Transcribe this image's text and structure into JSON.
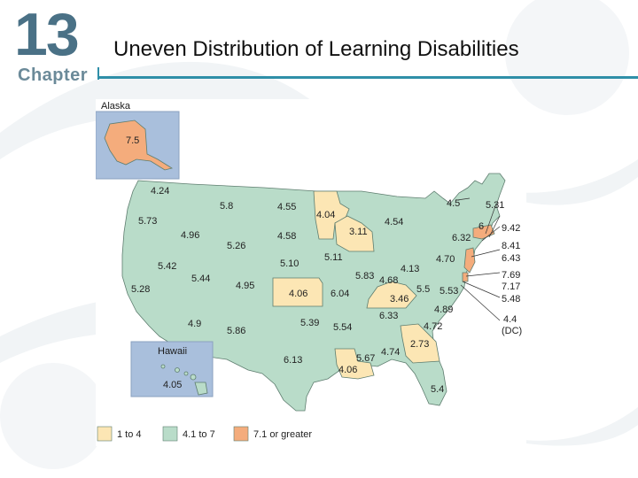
{
  "slide": {
    "chapter_number": "13",
    "chapter_word": "Chapter",
    "title": "Uneven Distribution of Learning Disabilities"
  },
  "map": {
    "colors": {
      "low": "#fce6b4",
      "mid": "#b9dcc9",
      "high": "#f4ac7c",
      "inset_bg": "#a9bfdc",
      "border": "#5e7d6f"
    },
    "alaska": {
      "title": "Alaska",
      "value": "7.5",
      "category": "high"
    },
    "hawaii": {
      "title": "Hawaii",
      "value": "4.05",
      "category": "mid"
    },
    "dc": {
      "value": "4.4",
      "name": "(DC)"
    },
    "states": [
      {
        "name": "Washington",
        "value": "4.24",
        "category": "mid"
      },
      {
        "name": "Oregon",
        "value": "5.73",
        "category": "mid"
      },
      {
        "name": "Idaho",
        "value": "4.96",
        "category": "mid"
      },
      {
        "name": "Montana",
        "value": "5.8",
        "category": "mid"
      },
      {
        "name": "Wyoming",
        "value": "5.26",
        "category": "mid"
      },
      {
        "name": "Nevada",
        "value": "5.42",
        "category": "mid"
      },
      {
        "name": "Utah",
        "value": "5.44",
        "category": "mid"
      },
      {
        "name": "California",
        "value": "5.28",
        "category": "mid"
      },
      {
        "name": "Colorado",
        "value": "4.95",
        "category": "mid"
      },
      {
        "name": "Arizona",
        "value": "4.9",
        "category": "mid"
      },
      {
        "name": "New Mexico",
        "value": "5.86",
        "category": "mid"
      },
      {
        "name": "North Dakota",
        "value": "4.55",
        "category": "mid"
      },
      {
        "name": "South Dakota",
        "value": "4.58",
        "category": "mid"
      },
      {
        "name": "Nebraska",
        "value": "5.10",
        "category": "mid"
      },
      {
        "name": "Kansas",
        "value": "4.06",
        "category": "low"
      },
      {
        "name": "Oklahoma",
        "value": "5.39",
        "category": "mid"
      },
      {
        "name": "Texas",
        "value": "6.13",
        "category": "mid"
      },
      {
        "name": "Minnesota",
        "value": "4.04",
        "category": "low"
      },
      {
        "name": "Iowa",
        "value": "5.11",
        "category": "mid"
      },
      {
        "name": "Missouri",
        "value": "6.04",
        "category": "mid"
      },
      {
        "name": "Arkansas",
        "value": "5.54",
        "category": "mid"
      },
      {
        "name": "Louisiana",
        "value": "4.06",
        "category": "low"
      },
      {
        "name": "Wisconsin",
        "value": "3.11",
        "category": "low"
      },
      {
        "name": "Illinois",
        "value": "5.83",
        "category": "mid"
      },
      {
        "name": "Michigan",
        "value": "4.54",
        "category": "mid"
      },
      {
        "name": "Indiana",
        "value": "4.68",
        "category": "mid"
      },
      {
        "name": "Ohio",
        "value": "4.13",
        "category": "mid"
      },
      {
        "name": "Kentucky",
        "value": "3.46",
        "category": "low"
      },
      {
        "name": "Tennessee",
        "value": "6.33",
        "category": "mid"
      },
      {
        "name": "Mississippi",
        "value": "5.67",
        "category": "mid"
      },
      {
        "name": "Alabama",
        "value": "4.74",
        "category": "mid"
      },
      {
        "name": "Georgia",
        "value": "2.73",
        "category": "low"
      },
      {
        "name": "Florida",
        "value": "5.4",
        "category": "mid"
      },
      {
        "name": "South Carolina",
        "value": "4.72",
        "category": "mid"
      },
      {
        "name": "North Carolina",
        "value": "4.89",
        "category": "mid"
      },
      {
        "name": "Virginia",
        "value": "5.53",
        "category": "mid"
      },
      {
        "name": "West Virginia",
        "value": "5.5",
        "category": "mid"
      },
      {
        "name": "Pennsylvania",
        "value": "4.70",
        "category": "mid"
      },
      {
        "name": "New York",
        "value": "6.32",
        "category": "mid"
      },
      {
        "name": "Vermont",
        "value": "6",
        "category": "mid"
      },
      {
        "name": "New Hampshire",
        "value": "4.5",
        "category": "mid"
      },
      {
        "name": "Maine",
        "value": "5.31",
        "category": "mid"
      },
      {
        "name": "Massachusetts",
        "value": "9.42",
        "category": "high"
      },
      {
        "name": "Rhode Island",
        "value": "8.41",
        "category": "high"
      },
      {
        "name": "Connecticut",
        "value": "6.43",
        "category": "mid"
      },
      {
        "name": "New Jersey",
        "value": "7.69",
        "category": "high"
      },
      {
        "name": "Delaware",
        "value": "7.17",
        "category": "high"
      },
      {
        "name": "Maryland",
        "value": "5.48",
        "category": "mid"
      }
    ],
    "legend": [
      {
        "label": "1 to 4",
        "category": "low"
      },
      {
        "label": "4.1 to 7",
        "category": "mid"
      },
      {
        "label": "7.1 or greater",
        "category": "high"
      }
    ]
  }
}
